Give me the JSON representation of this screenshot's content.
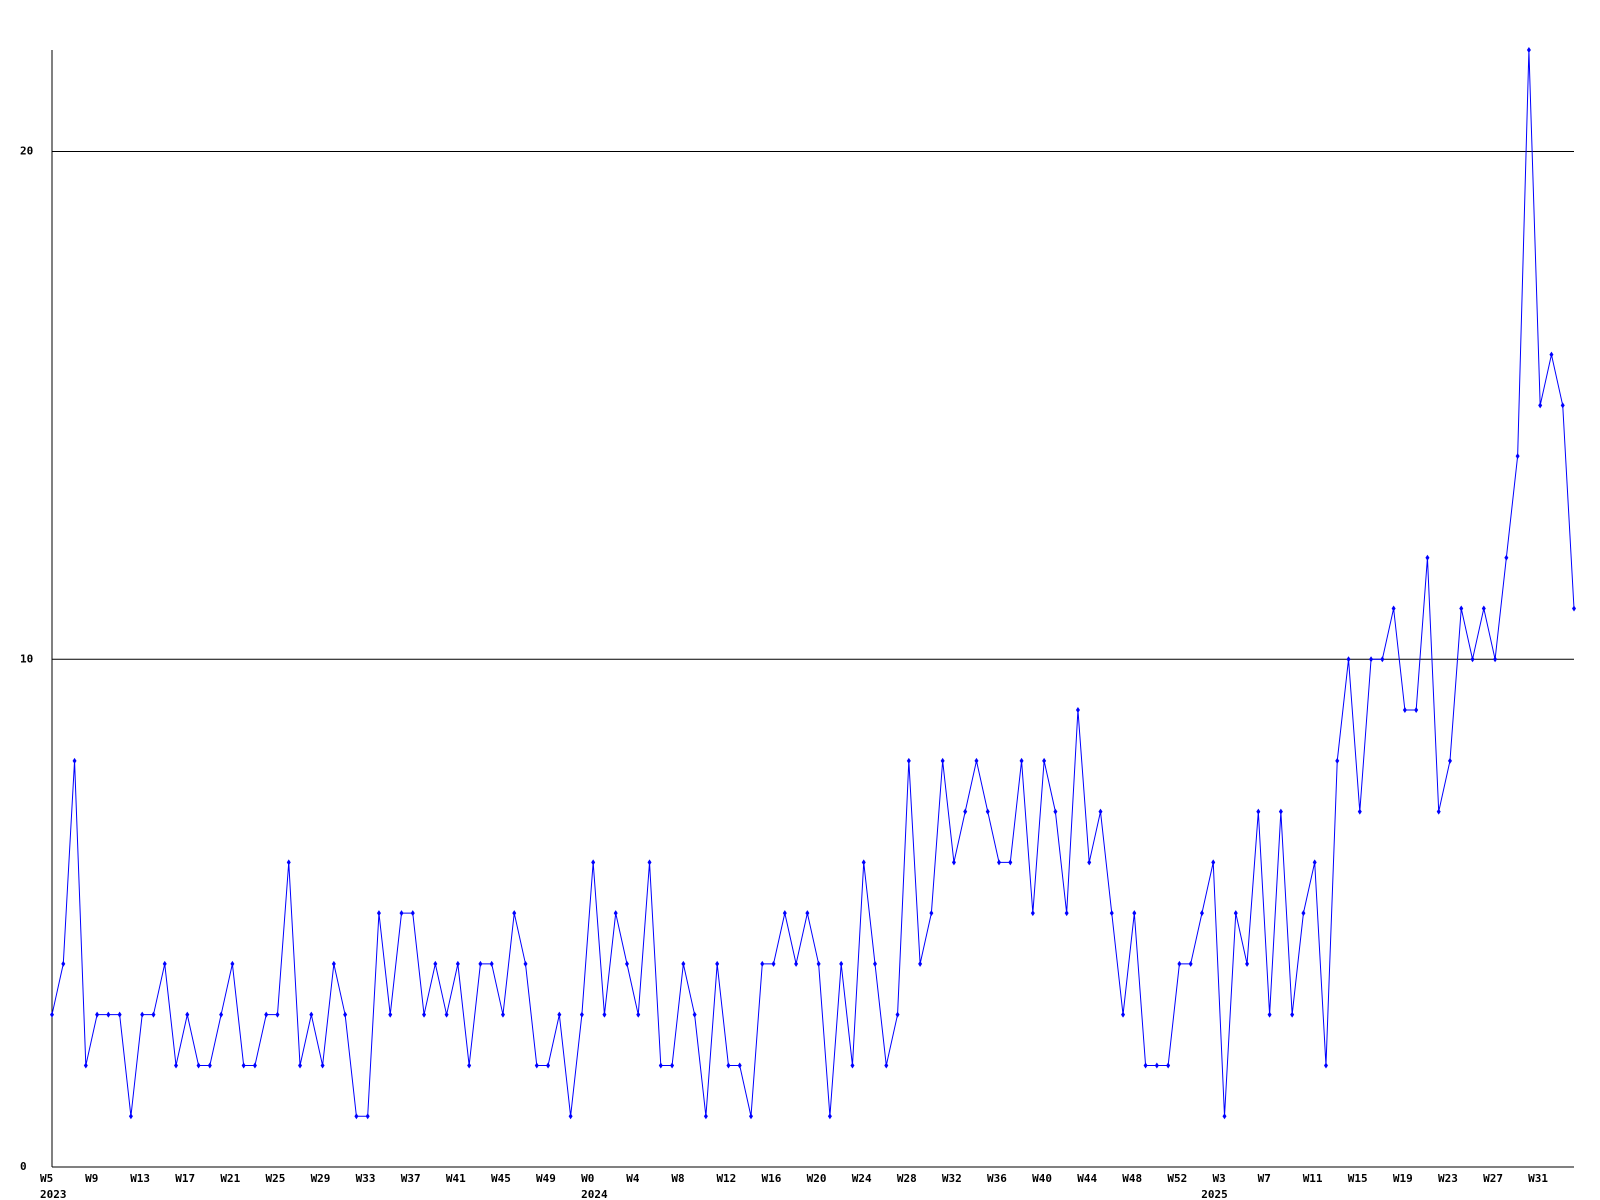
{
  "chart_data": {
    "type": "line",
    "color": "#0000ff",
    "grid": true,
    "ylim": [
      0,
      22
    ],
    "yticks": [
      0,
      10,
      20
    ],
    "categories": [
      "W5",
      null,
      null,
      null,
      "W9",
      null,
      null,
      null,
      "W13",
      null,
      null,
      null,
      "W17",
      null,
      null,
      null,
      "W21",
      null,
      null,
      null,
      "W25",
      null,
      null,
      null,
      "W29",
      null,
      null,
      null,
      "W33",
      null,
      null,
      null,
      "W37",
      null,
      null,
      null,
      "W41",
      null,
      null,
      null,
      "W45",
      null,
      null,
      null,
      "W49",
      null,
      null,
      null,
      "W0",
      null,
      null,
      null,
      "W4",
      null,
      null,
      null,
      "W8",
      null,
      null,
      null,
      "W12",
      null,
      null,
      null,
      "W16",
      null,
      null,
      null,
      "W20",
      null,
      null,
      null,
      "W24",
      null,
      null,
      null,
      "W28",
      null,
      null,
      null,
      "W32",
      null,
      null,
      null,
      "W36",
      null,
      null,
      null,
      "W40",
      null,
      null,
      null,
      "W44",
      null,
      null,
      null,
      "W48",
      null,
      null,
      null,
      "W52",
      null,
      null,
      null,
      "W3",
      null,
      null,
      null,
      "W7",
      null,
      null,
      null,
      "W11",
      null,
      null,
      null,
      "W15",
      null,
      null,
      null,
      "W19",
      null,
      null,
      null,
      "W23",
      null,
      null,
      null,
      "W27",
      null,
      null,
      null,
      "W31",
      null,
      null,
      null
    ],
    "x_group_labels": [
      "2023",
      null,
      null,
      null,
      null,
      null,
      null,
      null,
      null,
      null,
      null,
      null,
      null,
      null,
      null,
      null,
      null,
      null,
      null,
      null,
      null,
      null,
      null,
      null,
      null,
      null,
      null,
      null,
      null,
      null,
      null,
      null,
      null,
      null,
      null,
      null,
      null,
      null,
      null,
      null,
      null,
      null,
      null,
      null,
      null,
      null,
      null,
      null,
      "2024",
      null,
      null,
      null,
      null,
      null,
      null,
      null,
      null,
      null,
      null,
      null,
      null,
      null,
      null,
      null,
      null,
      null,
      null,
      null,
      null,
      null,
      null,
      null,
      null,
      null,
      null,
      null,
      null,
      null,
      null,
      null,
      null,
      null,
      null,
      null,
      null,
      null,
      null,
      null,
      null,
      null,
      null,
      null,
      null,
      null,
      null,
      null,
      null,
      null,
      null,
      null,
      null,
      null,
      null,
      "2025",
      null,
      null,
      null,
      null,
      null,
      null,
      null,
      null,
      null,
      null,
      null,
      null,
      null,
      null,
      null,
      null,
      null,
      null,
      null,
      null,
      null,
      null,
      null,
      null,
      null,
      null,
      null,
      null,
      null,
      null,
      null,
      null,
      null,
      null
    ],
    "values": [
      3,
      4,
      8,
      2,
      3,
      3,
      3,
      1,
      3,
      3,
      4,
      2,
      3,
      2,
      2,
      3,
      4,
      2,
      2,
      3,
      3,
      6,
      2,
      3,
      2,
      4,
      3,
      1,
      1,
      5,
      3,
      5,
      5,
      3,
      4,
      3,
      4,
      2,
      4,
      4,
      3,
      5,
      4,
      2,
      2,
      3,
      1,
      3,
      6,
      3,
      5,
      4,
      3,
      6,
      2,
      2,
      4,
      3,
      1,
      4,
      2,
      2,
      1,
      4,
      4,
      5,
      4,
      5,
      4,
      1,
      4,
      2,
      6,
      4,
      2,
      3,
      8,
      4,
      5,
      8,
      6,
      7,
      8,
      7,
      6,
      6,
      8,
      5,
      8,
      7,
      5,
      9,
      6,
      7,
      5,
      3,
      5,
      2,
      2,
      2,
      4,
      4,
      5,
      6,
      1,
      5,
      4,
      7,
      3,
      7,
      3,
      5,
      6,
      2,
      8,
      10,
      7,
      10,
      10,
      11,
      9,
      9,
      12,
      7,
      8,
      11,
      10,
      11,
      10,
      12,
      14,
      22,
      15,
      16,
      15,
      11
    ]
  }
}
